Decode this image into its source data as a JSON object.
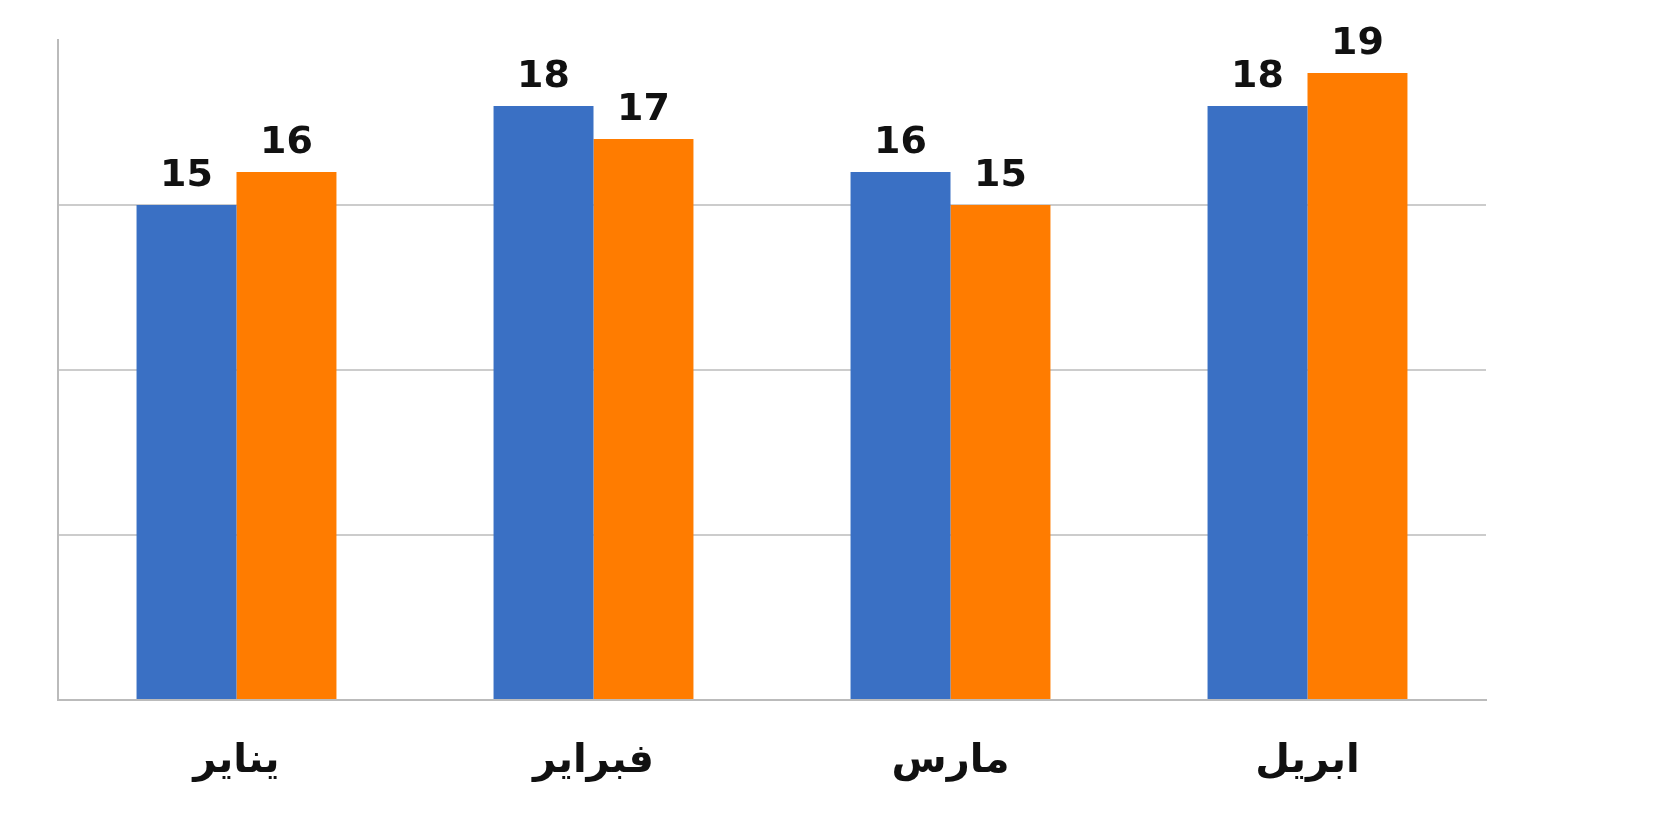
{
  "chart_data": {
    "type": "bar",
    "categories": [
      "يناير",
      "فبراير",
      "مارس",
      "ابريل"
    ],
    "series": [
      {
        "color": "#3a70c4",
        "values": [
          15,
          18,
          16,
          18
        ]
      },
      {
        "color": "#ff7c00",
        "values": [
          16,
          17,
          15,
          19
        ]
      }
    ],
    "ylim": [
      0,
      20
    ],
    "yticks": [
      {
        "value": 0,
        "label": null
      },
      {
        "value": 5,
        "label": null
      },
      {
        "value": 10,
        "label": null
      },
      {
        "value": 15,
        "label": null
      }
    ],
    "grid": "y",
    "tick_labels": "x",
    "data_labels": true
  }
}
